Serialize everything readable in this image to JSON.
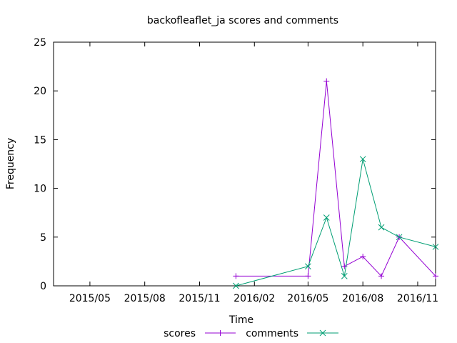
{
  "chart_data": {
    "type": "line",
    "title": "backofleaflet_ja scores and comments",
    "xlabel": "Time",
    "ylabel": "Frequency",
    "x_ticks": [
      "2015/05",
      "2015/08",
      "2015/11",
      "2016/02",
      "2016/05",
      "2016/08",
      "2016/11"
    ],
    "xlim": [
      "2015-03-01",
      "2016-12-01"
    ],
    "ylim": [
      0,
      25
    ],
    "y_ticks": [
      "0",
      "5",
      "10",
      "15",
      "20",
      "25"
    ],
    "grid": false,
    "legend_position": "bottom",
    "series": [
      {
        "name": "scores",
        "color": "#9400d3",
        "marker": "plus",
        "points": [
          {
            "x": "2016-01-01",
            "y": 1
          },
          {
            "x": "2016-05-01",
            "y": 1
          },
          {
            "x": "2016-06-01",
            "y": 21
          },
          {
            "x": "2016-07-01",
            "y": 2
          },
          {
            "x": "2016-08-01",
            "y": 3
          },
          {
            "x": "2016-09-01",
            "y": 1
          },
          {
            "x": "2016-10-01",
            "y": 5
          },
          {
            "x": "2016-12-01",
            "y": 1
          }
        ]
      },
      {
        "name": "comments",
        "color": "#009e73",
        "marker": "cross",
        "points": [
          {
            "x": "2016-01-01",
            "y": 0
          },
          {
            "x": "2016-05-01",
            "y": 2
          },
          {
            "x": "2016-06-01",
            "y": 7
          },
          {
            "x": "2016-07-01",
            "y": 1
          },
          {
            "x": "2016-08-01",
            "y": 13
          },
          {
            "x": "2016-09-01",
            "y": 6
          },
          {
            "x": "2016-10-01",
            "y": 5
          },
          {
            "x": "2016-12-01",
            "y": 4
          }
        ]
      }
    ]
  }
}
